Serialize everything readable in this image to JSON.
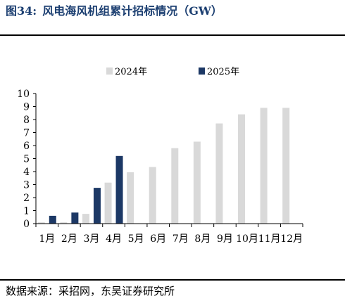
{
  "header": {
    "figure_label": "图34:",
    "title": "风电海风机组累计招标情况（GW）"
  },
  "footer": {
    "source": "数据来源：采招网，东吴证券研究所"
  },
  "chart_data": {
    "type": "bar",
    "title": "风电海风机组累计招标情况（GW）",
    "xlabel": "",
    "ylabel": "",
    "ylim": [
      0,
      10
    ],
    "yticks": [
      0,
      1,
      2,
      3,
      4,
      5,
      6,
      7,
      8,
      9,
      10
    ],
    "grid": false,
    "legend_position": "top",
    "categories": [
      "1月",
      "2月",
      "3月",
      "4月",
      "5月",
      "6月",
      "7月",
      "8月",
      "9月",
      "10月",
      "11月",
      "12月"
    ],
    "series": [
      {
        "name": "2024年",
        "color": "#d9d9d9",
        "values": [
          0.1,
          0.1,
          0.75,
          3.15,
          3.95,
          4.35,
          5.8,
          6.3,
          7.7,
          8.4,
          8.9,
          8.9
        ]
      },
      {
        "name": "2025年",
        "color": "#1c3865",
        "values": [
          0.6,
          0.85,
          2.75,
          5.2,
          null,
          null,
          null,
          null,
          null,
          null,
          null,
          null
        ]
      }
    ]
  }
}
